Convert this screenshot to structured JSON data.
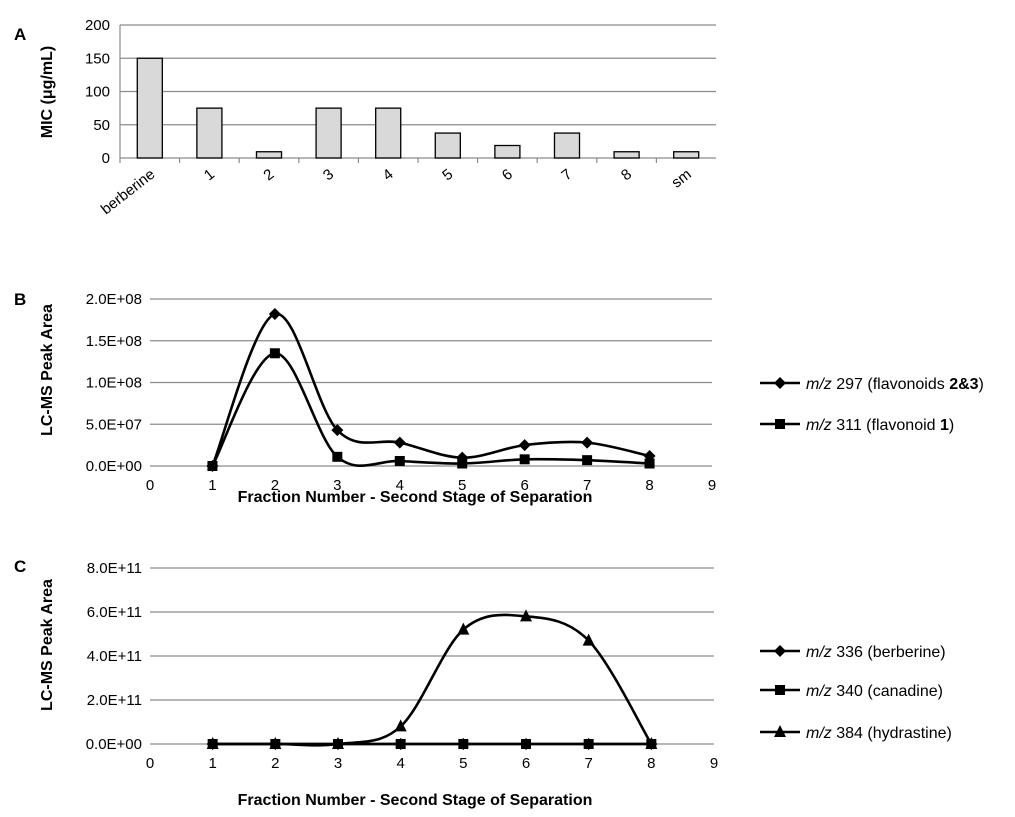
{
  "chart_data": [
    {
      "panel": "A",
      "type": "bar",
      "ylabel": "MIC (μg/mL)",
      "categories": [
        "berberine",
        "1",
        "2",
        "3",
        "4",
        "5",
        "6",
        "7",
        "8",
        "sm"
      ],
      "values": [
        150,
        75,
        9.4,
        75,
        75,
        37.5,
        18.8,
        37.5,
        9.4,
        9.4
      ],
      "ylim": [
        0,
        200
      ],
      "yticks": [
        "0",
        "50",
        "100",
        "150",
        "200"
      ],
      "grid": true
    },
    {
      "panel": "B",
      "type": "line",
      "xlabel": "Fraction Number - Second Stage of Separation",
      "ylabel": "LC-MS Peak Area",
      "xlim": [
        0,
        9
      ],
      "ylim": [
        0,
        200000000
      ],
      "xticks": [
        "0",
        "1",
        "2",
        "3",
        "4",
        "5",
        "6",
        "7",
        "8",
        "9"
      ],
      "yticks": [
        "0.0E+00",
        "5.0E+07",
        "1.0E+08",
        "1.5E+08",
        "2.0E+08"
      ],
      "grid": true,
      "legend_position": "right",
      "series": [
        {
          "name": "m/z 297 (flavonoids 2&3)",
          "legend_italic": "m/z",
          "legend_rest": " 297 (flavonoids ",
          "legend_bold": "2&3",
          "legend_end": ")",
          "marker": "diamond",
          "x": [
            1,
            2,
            3,
            4,
            5,
            6,
            7,
            8
          ],
          "y": [
            0,
            182000000,
            43000000,
            28000000,
            10000000,
            25000000,
            28000000,
            12000000
          ]
        },
        {
          "name": "m/z 311 (flavonoid 1)",
          "legend_italic": "m/z",
          "legend_rest": " 311 (flavonoid ",
          "legend_bold": "1",
          "legend_end": ")",
          "marker": "square",
          "x": [
            1,
            2,
            3,
            4,
            5,
            6,
            7,
            8
          ],
          "y": [
            0,
            135000000,
            11000000,
            6000000,
            3000000,
            8000000,
            7000000,
            3000000
          ]
        }
      ]
    },
    {
      "panel": "C",
      "type": "line",
      "xlabel": "Fraction Number - Second Stage of Separation",
      "ylabel": "LC-MS Peak Area",
      "xlim": [
        0,
        9
      ],
      "ylim": [
        0,
        800000000000
      ],
      "xticks": [
        "0",
        "1",
        "2",
        "3",
        "4",
        "5",
        "6",
        "7",
        "8",
        "9"
      ],
      "yticks": [
        "0.0E+00",
        "2.0E+11",
        "4.0E+11",
        "6.0E+11",
        "8.0E+11"
      ],
      "grid": true,
      "legend_position": "right",
      "series": [
        {
          "name": "m/z 336 (berberine)",
          "legend_italic": "m/z",
          "legend_rest": " 336 (berberine)",
          "legend_bold": "",
          "legend_end": "",
          "marker": "diamond",
          "x": [
            1,
            2,
            3,
            4,
            5,
            6,
            7,
            8
          ],
          "y": [
            0,
            0,
            0,
            0,
            0,
            0,
            0,
            0
          ]
        },
        {
          "name": "m/z 340 (canadine)",
          "legend_italic": "m/z",
          "legend_rest": " 340 (canadine)",
          "legend_bold": "",
          "legend_end": "",
          "marker": "square",
          "x": [
            1,
            2,
            3,
            4,
            5,
            6,
            7,
            8
          ],
          "y": [
            0,
            0,
            0,
            0,
            0,
            0,
            0,
            0
          ]
        },
        {
          "name": "m/z 384 (hydrastine)",
          "legend_italic": "m/z",
          "legend_rest": " 384 (hydrastine)",
          "legend_bold": "",
          "legend_end": "",
          "marker": "triangle",
          "x": [
            1,
            2,
            3,
            4,
            5,
            6,
            7,
            8
          ],
          "y": [
            0,
            0,
            0,
            80000000000,
            520000000000,
            580000000000,
            470000000000,
            0
          ]
        }
      ]
    }
  ]
}
